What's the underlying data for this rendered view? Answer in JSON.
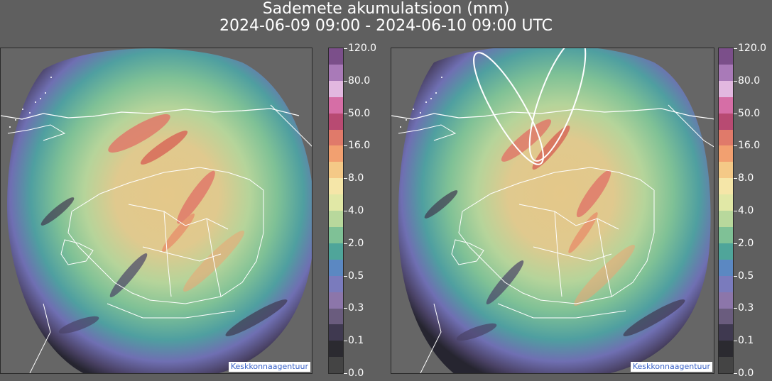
{
  "title": {
    "line1": "Sademete akumulatsioon (mm)",
    "line2": "2024-06-09 09:00 - 2024-06-10 09:00 UTC"
  },
  "credit": "Keskkonnaagentuur",
  "colorbar": {
    "labels": [
      "120.0",
      "80.0",
      "50.0",
      "16.0",
      "8.0",
      "4.0",
      "2.0",
      "0.5",
      "0.3",
      "0.1",
      "0.0"
    ],
    "colors_top_to_bottom": [
      "#7b4f8a",
      "#a97ab8",
      "#e2b8e0",
      "#d66ea6",
      "#b84a72",
      "#e07a6a",
      "#f2a070",
      "#f4c987",
      "#f5e6a8",
      "#e1e8a6",
      "#b8d89c",
      "#7fc196",
      "#4fa59a",
      "#5b88c2",
      "#7a7bbd",
      "#8c76aa",
      "#6a5c7e",
      "#3f3950",
      "#2b2a30",
      "#444444"
    ]
  },
  "map": {
    "style": "precipitation radar accumulation over Estonia",
    "panels": [
      "left",
      "right"
    ],
    "right_panel_annotations": "two white ellipses over the northern coast"
  }
}
